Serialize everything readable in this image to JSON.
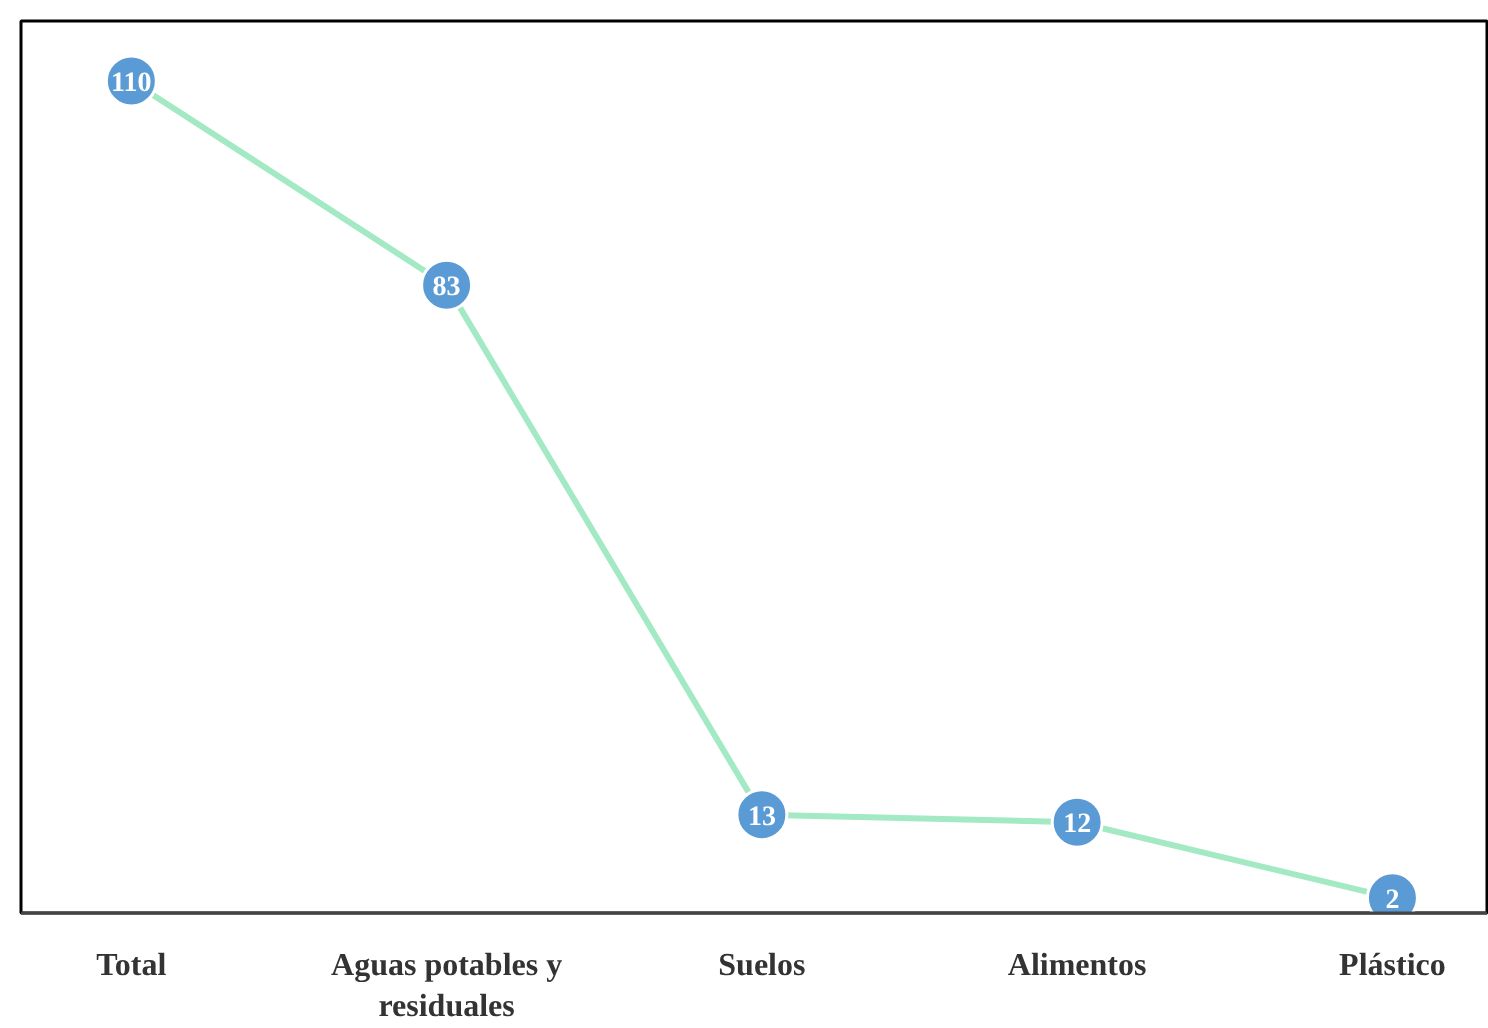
{
  "chart_data": {
    "type": "line",
    "categories": [
      "Total",
      "Aguas potables y residuales",
      "Suelos",
      "Alimentos",
      "Plástico"
    ],
    "series": [
      {
        "color": "#a3e9c4",
        "colors": [
          "#5b9bd5",
          "#5b9bd5",
          "#5b9bd5",
          "#5b9bd5",
          "#5b9bd5"
        ],
        "values": [
          110,
          83,
          13,
          12,
          2
        ]
      }
    ],
    "data_labels": true,
    "marker": "circle",
    "line_style": "solid"
  }
}
